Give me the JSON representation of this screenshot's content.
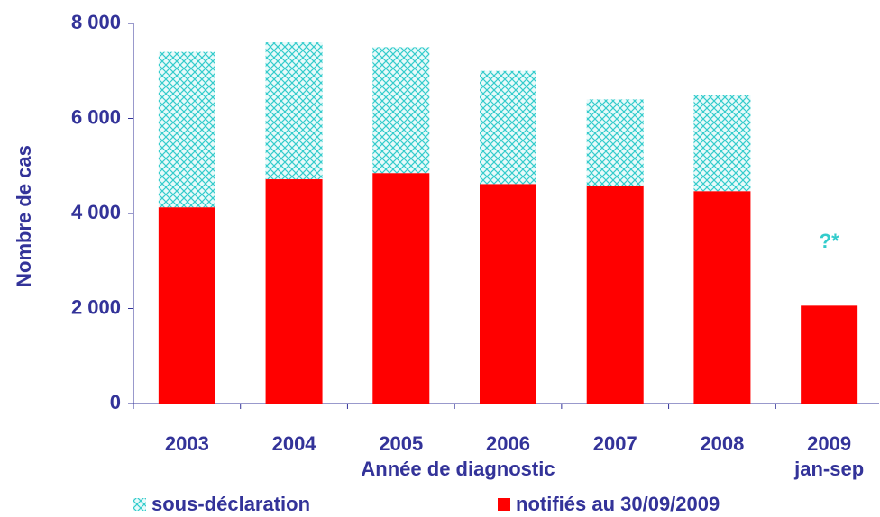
{
  "chart_data": {
    "type": "stacked_bar",
    "categories": [
      "2003",
      "2004",
      "2005",
      "2006",
      "2007",
      "2008",
      "2009\njan-sep"
    ],
    "series": [
      {
        "name": "notifiés au 30/09/2009",
        "color": "#ff0000",
        "values": [
          4130,
          4720,
          4850,
          4620,
          4570,
          4470,
          2060
        ]
      },
      {
        "name": "sous-déclaration",
        "color": "#33cccc",
        "pattern": "cross-hatch",
        "values": [
          3270,
          2880,
          2650,
          2380,
          1830,
          2030,
          null
        ]
      }
    ],
    "ylim": [
      0,
      8000
    ],
    "yticks": [
      0,
      {
        "value": 2000,
        "label": "2 000"
      },
      {
        "value": 4000,
        "label": "4 000"
      },
      {
        "value": 6000,
        "label": "6 000"
      },
      {
        "value": 8000,
        "label": "8 000"
      }
    ],
    "ylabel": "Nombre de cas",
    "xlabel": "Année de diagnostic",
    "annotation": {
      "text": "?*",
      "color": "#33cccc"
    },
    "grid": false
  }
}
